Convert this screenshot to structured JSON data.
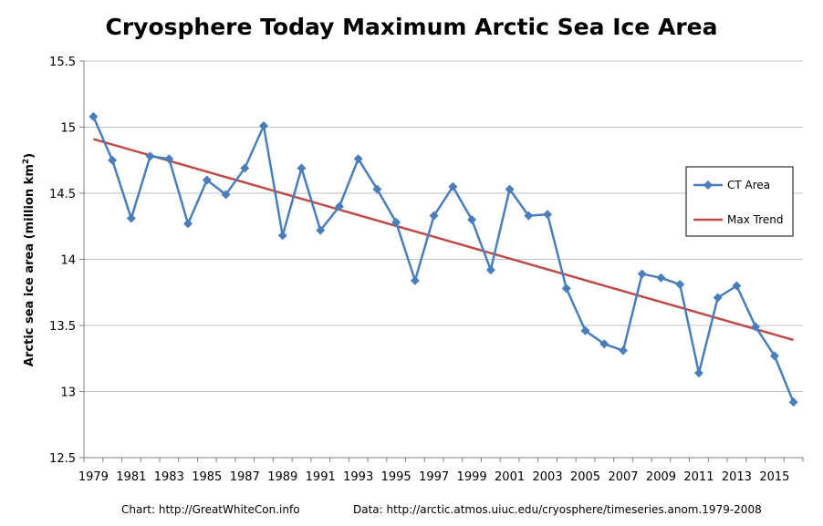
{
  "chart_data": {
    "type": "line",
    "title": "Cryosphere Today Maximum Arctic Sea Ice Area",
    "ylabel": "Arctic sea ice area (million km",
    "ylabel_sup": "2",
    "ylabel_close": ")",
    "xlabel": "",
    "ylim": [
      12.5,
      15.5
    ],
    "yticks": [
      "12.5",
      "13",
      "13.5",
      "14",
      "14.5",
      "15",
      "15.5"
    ],
    "xlim": [
      1979,
      2016
    ],
    "xticks": [
      "1979",
      "1981",
      "1983",
      "1985",
      "1987",
      "1989",
      "1991",
      "1993",
      "1995",
      "1997",
      "1999",
      "2001",
      "2003",
      "2005",
      "2007",
      "2009",
      "2011",
      "2013",
      "2015"
    ],
    "x": [
      1979,
      1980,
      1981,
      1982,
      1983,
      1984,
      1985,
      1986,
      1987,
      1988,
      1989,
      1990,
      1991,
      1992,
      1993,
      1994,
      1995,
      1996,
      1997,
      1998,
      1999,
      2000,
      2001,
      2002,
      2003,
      2004,
      2005,
      2006,
      2007,
      2008,
      2009,
      2010,
      2011,
      2012,
      2013,
      2014,
      2015,
      2016
    ],
    "grid": true,
    "legend_position": "right",
    "series": [
      {
        "name": "CT Area",
        "color": "#4a7ebb",
        "marker": "diamond",
        "values": [
          15.08,
          14.75,
          14.31,
          14.78,
          14.76,
          14.27,
          14.6,
          14.49,
          14.69,
          15.01,
          14.18,
          14.69,
          14.22,
          14.4,
          14.76,
          14.53,
          14.28,
          13.84,
          14.33,
          14.55,
          14.3,
          13.92,
          14.53,
          14.33,
          14.34,
          13.78,
          13.46,
          13.36,
          13.31,
          13.89,
          13.86,
          13.81,
          13.14,
          13.71,
          13.8,
          13.49,
          13.27,
          12.92
        ]
      },
      {
        "name": "Max Trend",
        "color": "#be4b48",
        "marker": "none",
        "type": "linear",
        "values_endpoints": [
          14.91,
          13.39
        ]
      }
    ],
    "footer_left": "Chart: http://GreatWhiteCon.info",
    "footer_right": "Data: http://arctic.atmos.uiuc.edu/cryosphere/timeseries.anom.1979-2008"
  }
}
